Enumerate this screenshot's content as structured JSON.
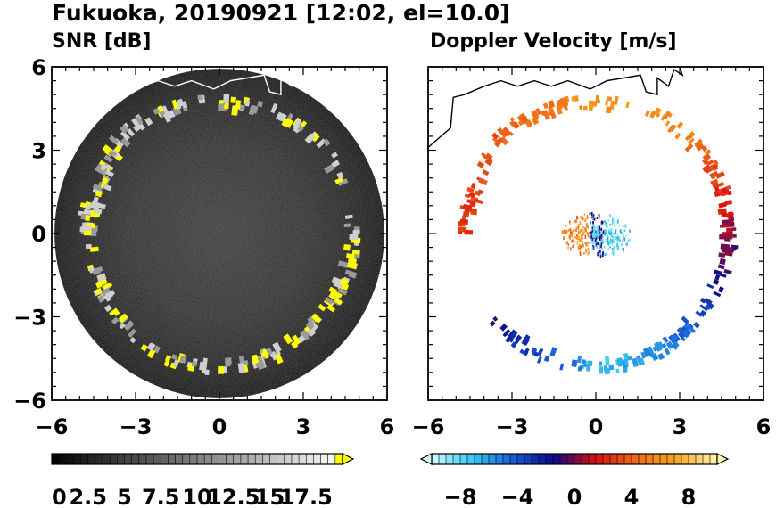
{
  "title": "Fukuoka, 20190921 [12:02, el=10.0]",
  "chart_data": [
    {
      "type": "heatmap",
      "title": "SNR [dB]",
      "xlabel": "",
      "ylabel": "",
      "xlim": [
        -6,
        6
      ],
      "ylim": [
        -6,
        6
      ],
      "xticks": [
        "−6",
        "−3",
        "0",
        "3",
        "6"
      ],
      "yticks": [
        "6",
        "3",
        "0",
        "−3",
        "−6"
      ],
      "grid": false,
      "radar_range": 5.9,
      "colorbar": {
        "labels": [
          "0",
          "2.5",
          "5",
          "7.5",
          "10",
          "12.5",
          "15",
          "17.5"
        ],
        "min": 0,
        "max": 20,
        "extend": "max",
        "colors": [
          "#000000",
          "#ffffff",
          "#ffff00"
        ]
      },
      "echo_ring": [
        {
          "az": -90,
          "r": 4.7
        },
        {
          "az": -70,
          "r": 4.5
        },
        {
          "az": -50,
          "r": 4.9
        },
        {
          "az": -25,
          "r": 4.8
        },
        {
          "az": 0,
          "r": 4.7
        },
        {
          "az": 30,
          "r": 4.8
        },
        {
          "az": 60,
          "r": 4.8
        },
        {
          "az": 100,
          "r": 4.8
        },
        {
          "az": 130,
          "r": 4.7
        },
        {
          "az": 155,
          "r": 4.8
        },
        {
          "az": 175,
          "r": 4.8
        },
        {
          "az": 205,
          "r": 4.8
        },
        {
          "az": 235,
          "r": 4.7
        },
        {
          "az": 260,
          "r": 4.6
        },
        {
          "az": 285,
          "r": 4.8
        }
      ]
    },
    {
      "type": "heatmap",
      "title": "Doppler Velocity [m/s]",
      "xlabel": "",
      "ylabel": "",
      "xlim": [
        -6,
        6
      ],
      "ylim": [
        -6,
        6
      ],
      "xticks": [
        "−6",
        "−3",
        "0",
        "3",
        "6"
      ],
      "yticks": [],
      "grid": false,
      "colorbar": {
        "labels": [
          "−8",
          "−4",
          "0",
          "4",
          "8"
        ],
        "min": -10,
        "max": 10,
        "extend": "both",
        "colors": [
          "#d6fbff",
          "#33c9f0",
          "#1a5bd6",
          "#0a0a8a",
          "#d81010",
          "#f06a18",
          "#f9a620",
          "#fff7b0"
        ]
      },
      "echo_ring": [
        {
          "az": -90,
          "r": 4.7,
          "v": 2.5
        },
        {
          "az": -70,
          "r": 4.6,
          "v": 3.0
        },
        {
          "az": -50,
          "r": 4.9,
          "v": 3.5
        },
        {
          "az": -25,
          "r": 4.8,
          "v": 4.5
        },
        {
          "az": 0,
          "r": 4.7,
          "v": 6.5
        },
        {
          "az": 30,
          "r": 4.8,
          "v": 6.0
        },
        {
          "az": 60,
          "r": 4.8,
          "v": 3.5
        },
        {
          "az": 80,
          "r": 4.8,
          "v": 1.5
        },
        {
          "az": 100,
          "r": 4.8,
          "v": -0.5
        },
        {
          "az": 130,
          "r": 4.7,
          "v": -4.0
        },
        {
          "az": 155,
          "r": 4.8,
          "v": -5.5
        },
        {
          "az": 175,
          "r": 4.8,
          "v": -7.0
        },
        {
          "az": 205,
          "r": 4.8,
          "v": -3.5
        },
        {
          "az": 230,
          "r": 4.7,
          "v": -1.5
        }
      ]
    }
  ]
}
